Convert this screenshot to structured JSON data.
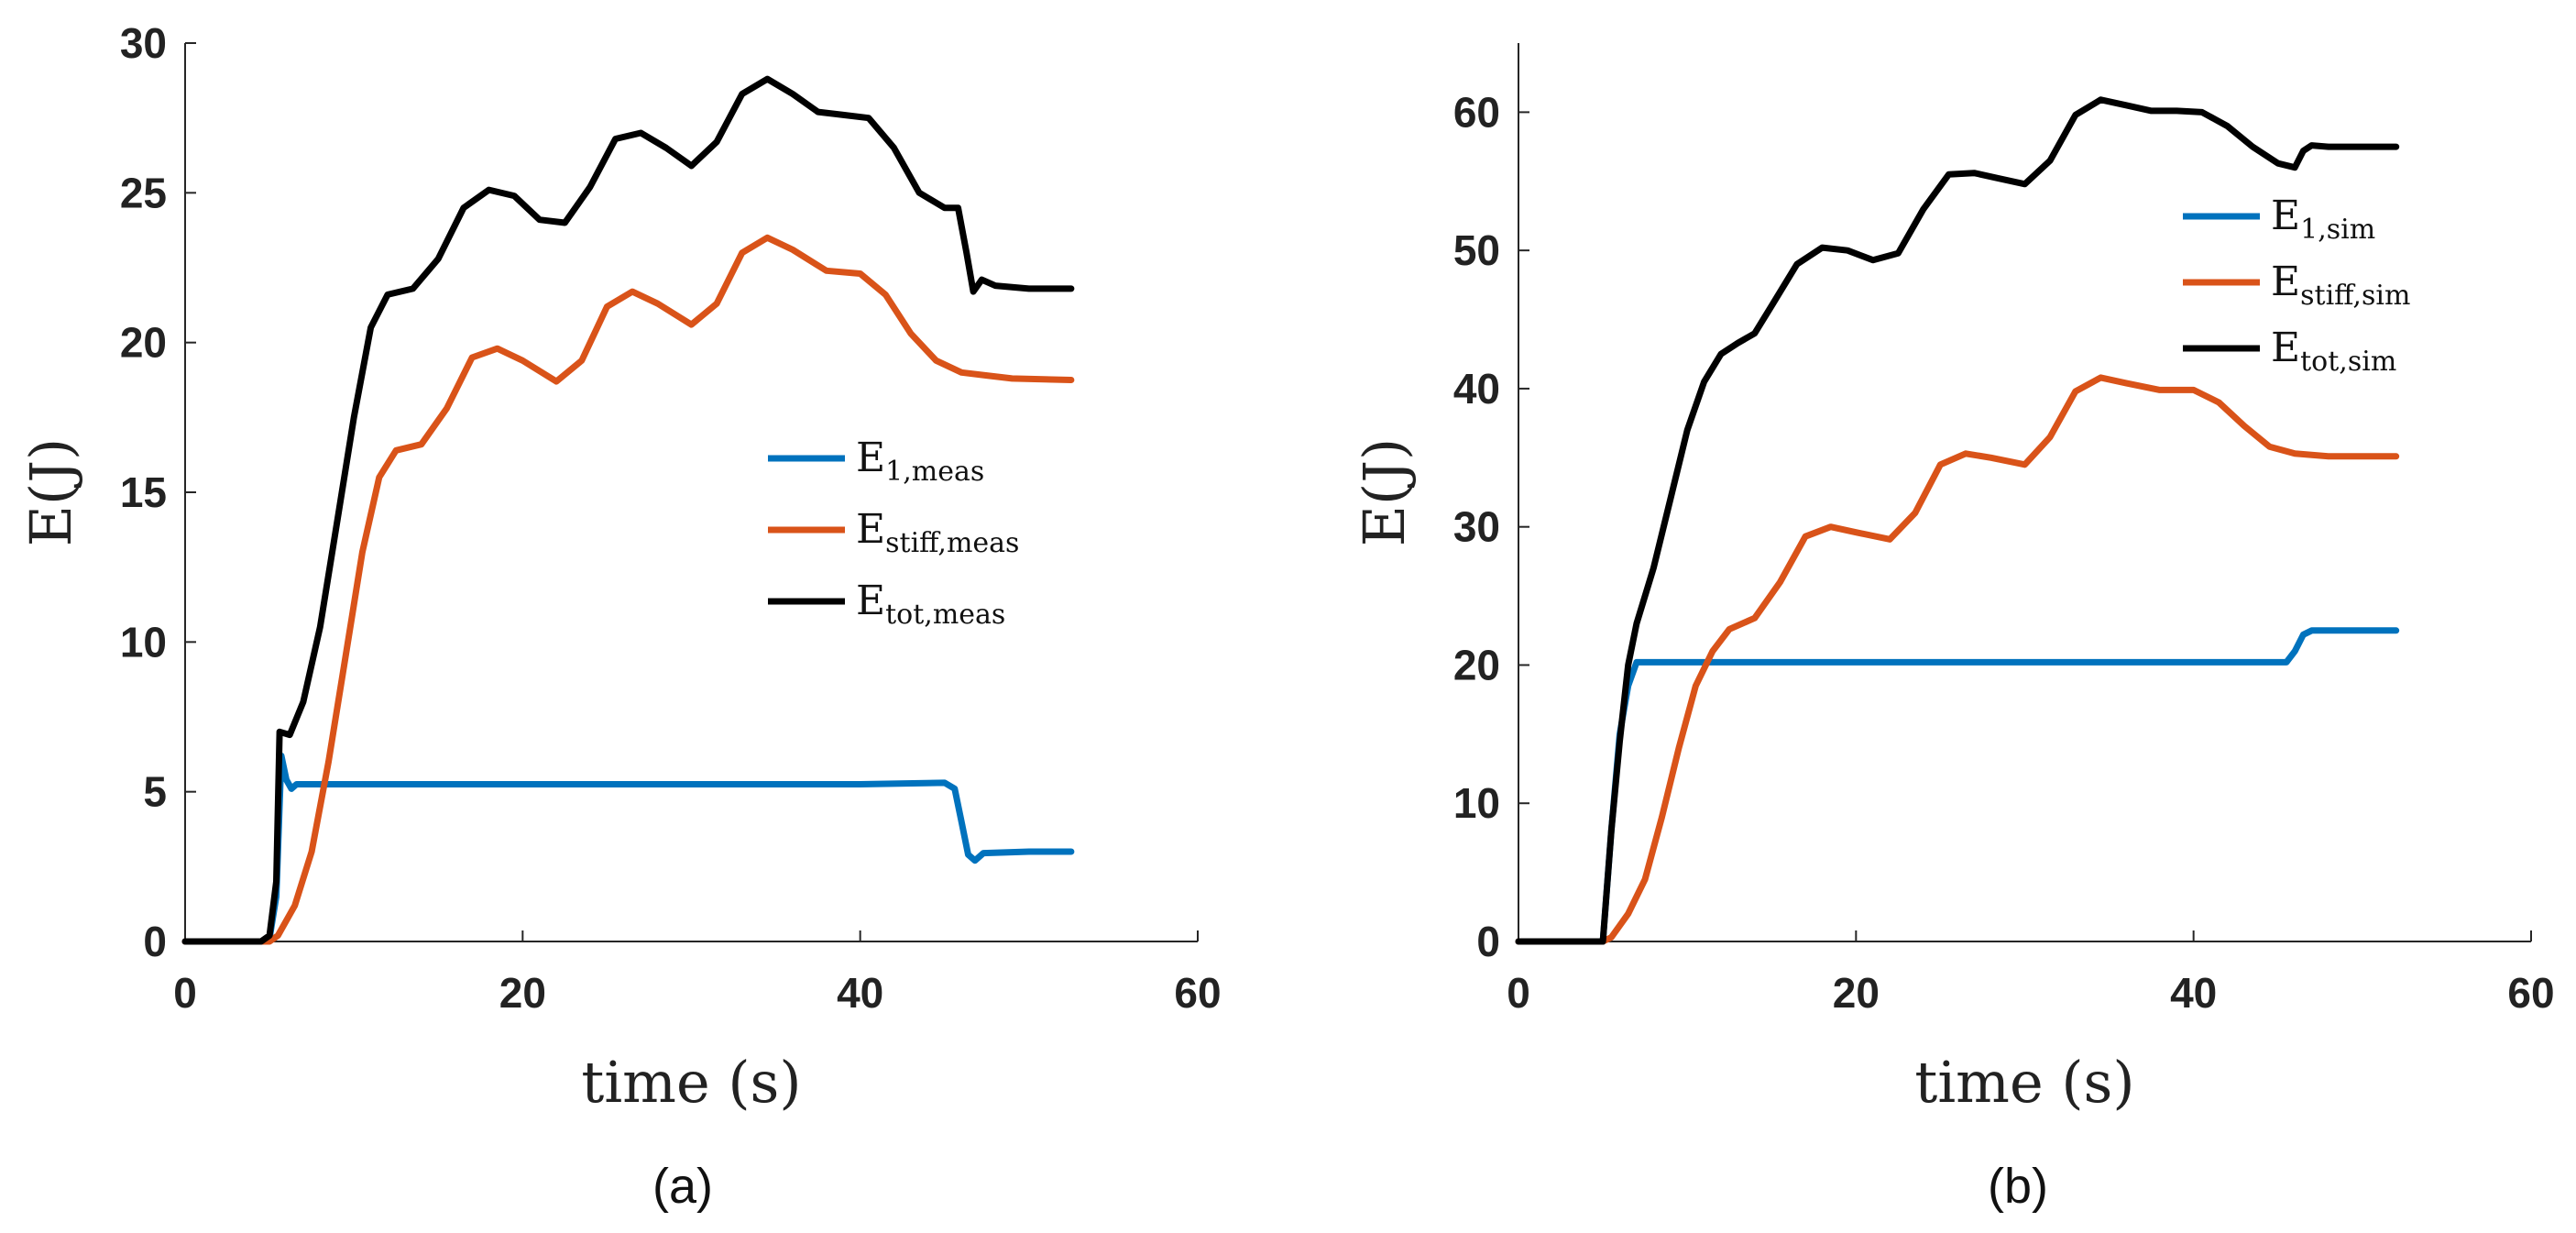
{
  "chart_data": [
    {
      "type": "line",
      "panel_label": "(a)",
      "xlabel": "time (s)",
      "ylabel": "E(J)",
      "xlim": [
        0,
        60
      ],
      "ylim": [
        0,
        30
      ],
      "xticks": [
        "0",
        "20",
        "40",
        "60"
      ],
      "yticks": [
        "0",
        "5",
        "10",
        "15",
        "20",
        "25",
        "30"
      ],
      "legend_position": "right-middle",
      "series": [
        {
          "name": "E1,meas",
          "legend_main": "E",
          "legend_sub": "1,meas",
          "color": "#0072BD",
          "points": [
            [
              0,
              0
            ],
            [
              4.5,
              0
            ],
            [
              5,
              0.1
            ],
            [
              5.4,
              1.5
            ],
            [
              5.7,
              6.2
            ],
            [
              6,
              5.4
            ],
            [
              6.3,
              5.1
            ],
            [
              6.6,
              5.25
            ],
            [
              10,
              5.25
            ],
            [
              20,
              5.25
            ],
            [
              30,
              5.25
            ],
            [
              40,
              5.25
            ],
            [
              45,
              5.3
            ],
            [
              45.6,
              5.1
            ],
            [
              46,
              4.0
            ],
            [
              46.4,
              2.9
            ],
            [
              46.8,
              2.7
            ],
            [
              47.3,
              2.95
            ],
            [
              50,
              3.0
            ],
            [
              52.5,
              3.0
            ]
          ]
        },
        {
          "name": "Estiff,meas",
          "legend_main": "E",
          "legend_sub": "stiff,meas",
          "color": "#D95319",
          "points": [
            [
              0,
              0
            ],
            [
              5,
              0
            ],
            [
              5.5,
              0.2
            ],
            [
              6.5,
              1.2
            ],
            [
              7.5,
              3
            ],
            [
              8.5,
              6
            ],
            [
              9.5,
              9.5
            ],
            [
              10.5,
              13
            ],
            [
              11.5,
              15.5
            ],
            [
              12.5,
              16.4
            ],
            [
              14,
              16.6
            ],
            [
              15.5,
              17.8
            ],
            [
              17,
              19.5
            ],
            [
              18.5,
              19.8
            ],
            [
              20,
              19.4
            ],
            [
              22,
              18.7
            ],
            [
              23.5,
              19.4
            ],
            [
              25,
              21.2
            ],
            [
              26.5,
              21.7
            ],
            [
              28,
              21.3
            ],
            [
              30,
              20.6
            ],
            [
              31.5,
              21.3
            ],
            [
              33,
              23
            ],
            [
              34.5,
              23.5
            ],
            [
              36,
              23.1
            ],
            [
              38,
              22.4
            ],
            [
              40,
              22.3
            ],
            [
              41.5,
              21.6
            ],
            [
              43,
              20.3
            ],
            [
              44.5,
              19.4
            ],
            [
              46,
              19.0
            ],
            [
              47.5,
              18.9
            ],
            [
              49,
              18.8
            ],
            [
              52.5,
              18.75
            ]
          ]
        },
        {
          "name": "Etot,meas",
          "legend_main": "E",
          "legend_sub": "tot,meas",
          "color": "#000000",
          "points": [
            [
              0,
              0
            ],
            [
              4.5,
              0
            ],
            [
              5,
              0.2
            ],
            [
              5.4,
              2
            ],
            [
              5.6,
              7
            ],
            [
              6.2,
              6.9
            ],
            [
              7,
              8
            ],
            [
              8,
              10.5
            ],
            [
              9,
              14
            ],
            [
              10,
              17.5
            ],
            [
              11,
              20.5
            ],
            [
              12,
              21.6
            ],
            [
              13.5,
              21.8
            ],
            [
              15,
              22.8
            ],
            [
              16.5,
              24.5
            ],
            [
              18,
              25.1
            ],
            [
              19.5,
              24.9
            ],
            [
              21,
              24.1
            ],
            [
              22.5,
              24.0
            ],
            [
              24,
              25.2
            ],
            [
              25.5,
              26.8
            ],
            [
              27,
              27.0
            ],
            [
              28.5,
              26.5
            ],
            [
              30,
              25.9
            ],
            [
              31.5,
              26.7
            ],
            [
              33,
              28.3
            ],
            [
              34.5,
              28.8
            ],
            [
              36,
              28.3
            ],
            [
              37.5,
              27.7
            ],
            [
              39,
              27.6
            ],
            [
              40.5,
              27.5
            ],
            [
              42,
              26.5
            ],
            [
              43.5,
              25
            ],
            [
              45,
              24.5
            ],
            [
              45.8,
              24.5
            ],
            [
              46.3,
              23
            ],
            [
              46.7,
              21.7
            ],
            [
              47.2,
              22.1
            ],
            [
              48,
              21.9
            ],
            [
              50,
              21.8
            ],
            [
              52.5,
              21.8
            ]
          ]
        }
      ]
    },
    {
      "type": "line",
      "panel_label": "(b)",
      "xlabel": "time (s)",
      "ylabel": "E(J)",
      "xlim": [
        0,
        60
      ],
      "ylim": [
        0,
        65
      ],
      "xticks": [
        "0",
        "20",
        "40",
        "60"
      ],
      "yticks": [
        "0",
        "10",
        "20",
        "30",
        "40",
        "50",
        "60"
      ],
      "legend_position": "top-right",
      "series": [
        {
          "name": "E1,sim",
          "legend_main": "E",
          "legend_sub": "1,sim",
          "color": "#0072BD",
          "points": [
            [
              0,
              0
            ],
            [
              5,
              0
            ],
            [
              5.5,
              8
            ],
            [
              6,
              15
            ],
            [
              6.5,
              18.5
            ],
            [
              7,
              20.2
            ],
            [
              10,
              20.2
            ],
            [
              20,
              20.2
            ],
            [
              30,
              20.2
            ],
            [
              40,
              20.2
            ],
            [
              45.5,
              20.2
            ],
            [
              46,
              21
            ],
            [
              46.5,
              22.2
            ],
            [
              47,
              22.5
            ],
            [
              52,
              22.5
            ]
          ]
        },
        {
          "name": "Estiff,sim",
          "legend_main": "E",
          "legend_sub": "stiff,sim",
          "color": "#D95319",
          "points": [
            [
              0,
              0
            ],
            [
              5,
              0
            ],
            [
              5.5,
              0.3
            ],
            [
              6.5,
              2
            ],
            [
              7.5,
              4.5
            ],
            [
              8.5,
              9
            ],
            [
              9.5,
              14
            ],
            [
              10.5,
              18.5
            ],
            [
              11.5,
              21
            ],
            [
              12.5,
              22.6
            ],
            [
              14,
              23.4
            ],
            [
              15.5,
              26
            ],
            [
              17,
              29.3
            ],
            [
              18.5,
              30
            ],
            [
              20,
              29.6
            ],
            [
              22,
              29.1
            ],
            [
              23.5,
              31
            ],
            [
              25,
              34.5
            ],
            [
              26.5,
              35.3
            ],
            [
              28,
              35
            ],
            [
              30,
              34.5
            ],
            [
              31.5,
              36.5
            ],
            [
              33,
              39.8
            ],
            [
              34.5,
              40.8
            ],
            [
              36,
              40.4
            ],
            [
              38,
              39.9
            ],
            [
              40,
              39.9
            ],
            [
              41.5,
              39
            ],
            [
              43,
              37.3
            ],
            [
              44.5,
              35.8
            ],
            [
              46,
              35.3
            ],
            [
              48,
              35.1
            ],
            [
              52,
              35.1
            ]
          ]
        },
        {
          "name": "Etot,sim",
          "legend_main": "E",
          "legend_sub": "tot,sim",
          "color": "#000000",
          "points": [
            [
              0,
              0
            ],
            [
              5,
              0
            ],
            [
              5.5,
              8
            ],
            [
              6,
              14.5
            ],
            [
              6.5,
              20
            ],
            [
              7,
              23
            ],
            [
              8,
              27
            ],
            [
              9,
              32
            ],
            [
              10,
              37
            ],
            [
              11,
              40.5
            ],
            [
              12,
              42.5
            ],
            [
              13,
              43.3
            ],
            [
              14,
              44
            ],
            [
              15,
              46
            ],
            [
              16.5,
              49
            ],
            [
              18,
              50.2
            ],
            [
              19.5,
              50
            ],
            [
              21,
              49.3
            ],
            [
              22.5,
              49.8
            ],
            [
              24,
              53
            ],
            [
              25.5,
              55.5
            ],
            [
              27,
              55.6
            ],
            [
              28.5,
              55.2
            ],
            [
              30,
              54.8
            ],
            [
              31.5,
              56.5
            ],
            [
              33,
              59.8
            ],
            [
              34.5,
              60.9
            ],
            [
              36,
              60.5
            ],
            [
              37.5,
              60.1
            ],
            [
              39,
              60.1
            ],
            [
              40.5,
              60
            ],
            [
              42,
              59
            ],
            [
              43.5,
              57.5
            ],
            [
              45,
              56.3
            ],
            [
              46,
              56
            ],
            [
              46.5,
              57.2
            ],
            [
              47,
              57.6
            ],
            [
              48,
              57.5
            ],
            [
              52,
              57.5
            ]
          ]
        }
      ]
    }
  ]
}
